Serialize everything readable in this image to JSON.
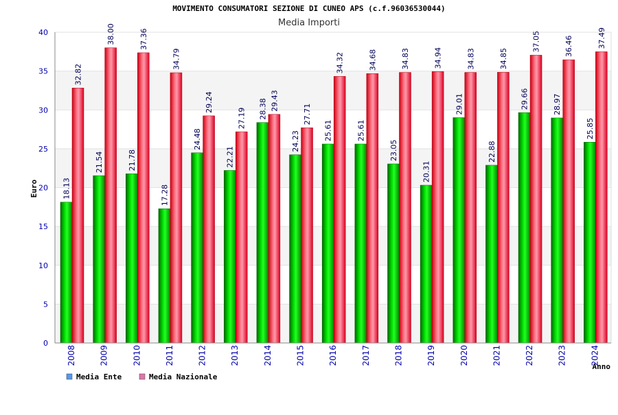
{
  "chart_data": {
    "type": "bar",
    "title": "MOVIMENTO CONSUMATORI SEZIONE DI CUNEO APS (c.f.96036530044)",
    "subtitle": "Media Importi",
    "xlabel": "Anno",
    "ylabel": "Euro",
    "ylim": [
      0,
      40
    ],
    "yticks": [
      0,
      5,
      10,
      15,
      20,
      25,
      30,
      35,
      40
    ],
    "ytick_labels": [
      "0",
      "5",
      "10",
      "15",
      "20",
      "25",
      "30",
      "35",
      "40"
    ],
    "grid": true,
    "legend_position": "bottom-left",
    "categories": [
      "2008",
      "2009",
      "2010",
      "2011",
      "2012",
      "2013",
      "2014",
      "2015",
      "2016",
      "2017",
      "2018",
      "2019",
      "2020",
      "2021",
      "2022",
      "2023",
      "2024"
    ],
    "series": [
      {
        "name": "Media Ente",
        "color": "#00cc00",
        "legend_color": "#5599ee",
        "values": [
          18.13,
          21.54,
          21.78,
          17.28,
          24.48,
          22.21,
          28.38,
          24.23,
          25.61,
          25.61,
          23.05,
          20.31,
          29.01,
          22.88,
          29.66,
          28.97,
          25.85
        ],
        "labels": [
          "18.13",
          "21.54",
          "21.78",
          "17.28",
          "24.48",
          "22.21",
          "28.38",
          "24.23",
          "25.61",
          "25.61",
          "23.05",
          "20.31",
          "29.01",
          "22.88",
          "29.66",
          "28.97",
          "25.85"
        ]
      },
      {
        "name": "Media Nazionale",
        "color": "#ee1133",
        "legend_color": "#dd77aa",
        "values": [
          32.82,
          38.0,
          37.36,
          34.79,
          29.24,
          27.19,
          29.43,
          27.71,
          34.32,
          34.68,
          34.83,
          34.94,
          34.83,
          34.85,
          37.05,
          36.46,
          37.49
        ],
        "labels": [
          "32.82",
          "38.00",
          "37.36",
          "34.79",
          "29.24",
          "27.19",
          "29.43",
          "27.71",
          "34.32",
          "34.68",
          "34.83",
          "34.94",
          "34.83",
          "34.85",
          "37.05",
          "36.46",
          "37.49"
        ]
      }
    ]
  }
}
